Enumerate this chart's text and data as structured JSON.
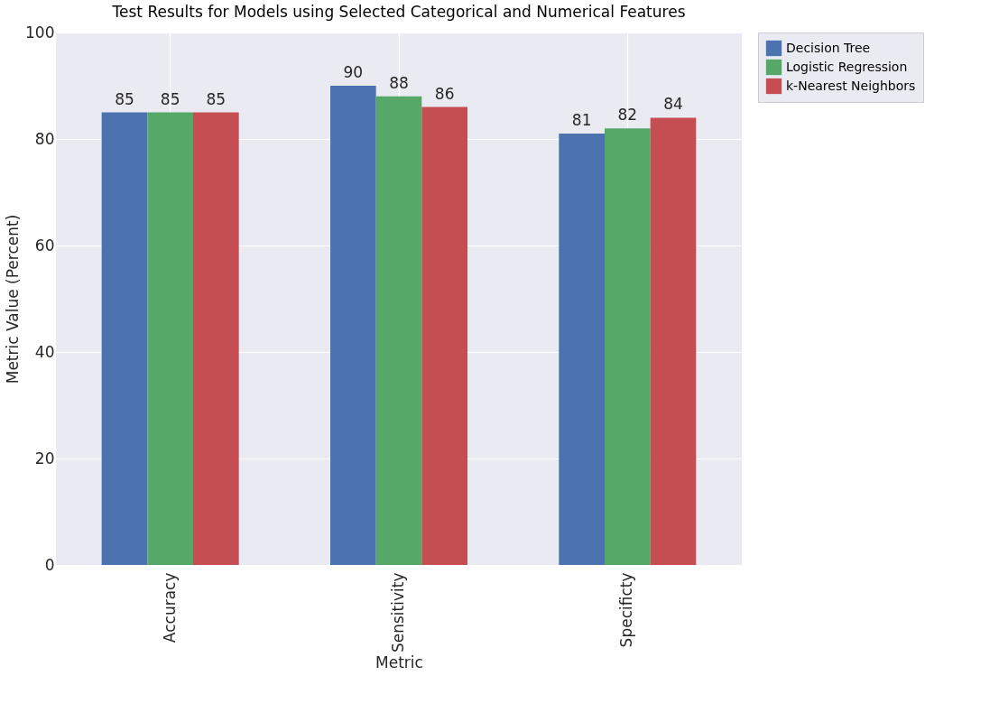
{
  "chart_data": {
    "type": "bar",
    "title": "Test Results for Models using Selected Categorical and Numerical Features",
    "xlabel": "Metric",
    "ylabel": "Metric Value (Percent)",
    "categories": [
      "Accuracy",
      "Sensitivity",
      "Specificty"
    ],
    "series": [
      {
        "name": "Decision Tree",
        "color": "#4c72b0",
        "values": [
          85,
          90,
          81
        ]
      },
      {
        "name": "Logistic Regression",
        "color": "#55a868",
        "values": [
          85,
          88,
          82
        ]
      },
      {
        "name": "k-Nearest Neighbors",
        "color": "#c44e52",
        "values": [
          85,
          86,
          84
        ]
      }
    ],
    "ylim": [
      0,
      100
    ],
    "yticks": [
      0,
      20,
      40,
      60,
      80,
      100
    ],
    "grid": true,
    "legend": "right",
    "data_labels": true
  }
}
